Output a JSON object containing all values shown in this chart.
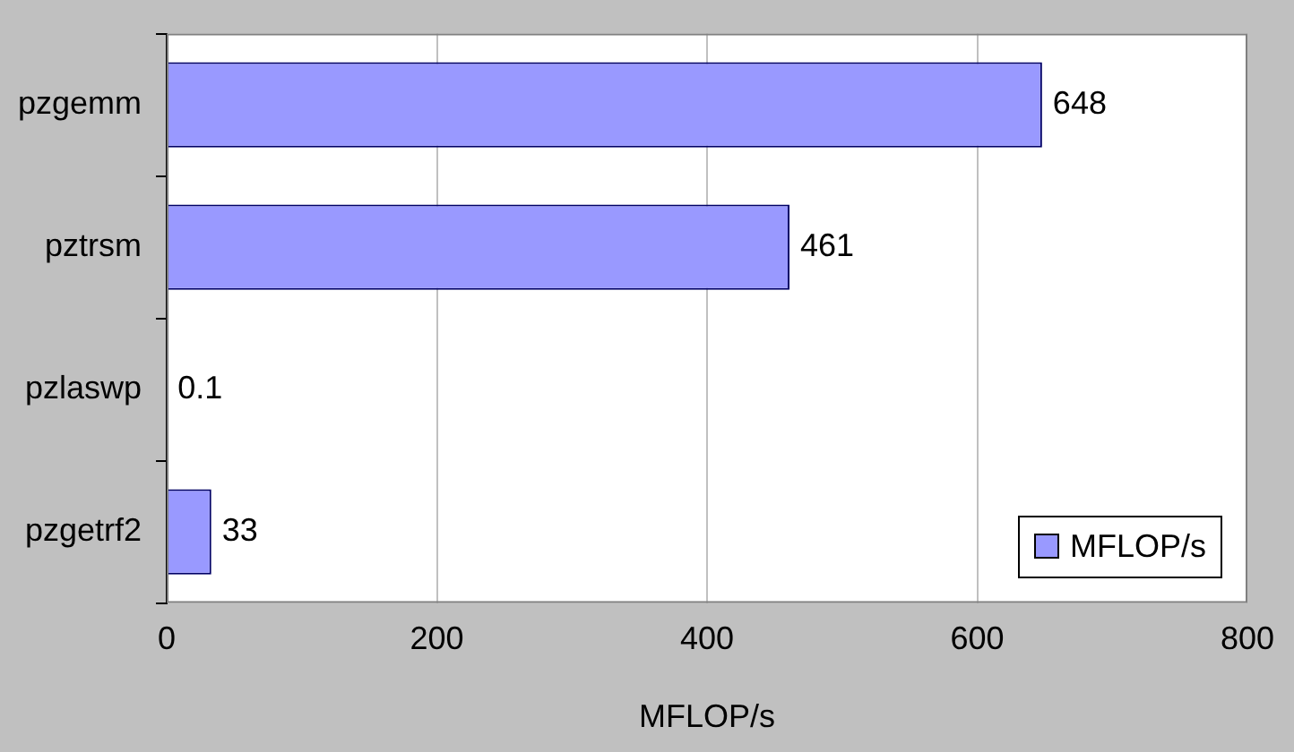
{
  "chart_data": {
    "type": "bar",
    "orientation": "horizontal",
    "xlabel": "MFLOP/s",
    "categories": [
      "pzgemm",
      "pztrsm",
      "pzlaswp",
      "pzgetrf2"
    ],
    "series": [
      {
        "name": "MFLOP/s",
        "color": "#9999ff",
        "values": [
          648,
          461,
          0.1,
          33
        ]
      }
    ],
    "xlim": [
      0,
      800
    ],
    "xticks": [
      0,
      200,
      400,
      600,
      800
    ],
    "grid": "x",
    "legend": "bottom right",
    "data_labels": true
  }
}
